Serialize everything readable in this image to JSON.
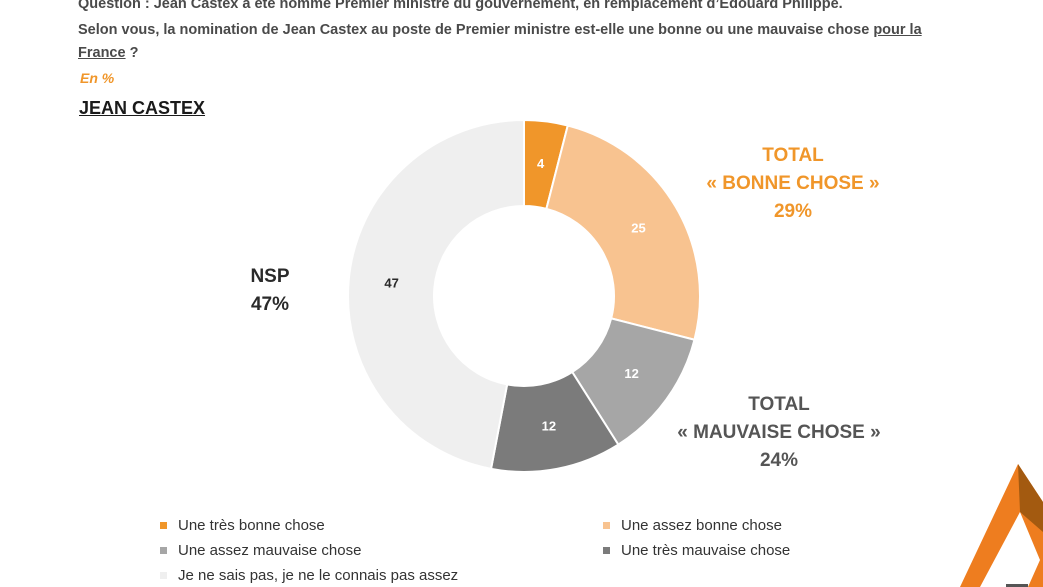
{
  "question": {
    "line1": "Question : Jean Castex a été nommé Premier ministre du gouvernement, en remplacement d’Edouard Philippe.",
    "line2_prefix": "Selon vous, la nomination de Jean Castex au poste de Premier ministre est-elle une bonne ou une mauvaise chose ",
    "line2_underlined": "pour la",
    "line3_underlined": "France",
    "line3_suffix": " ?"
  },
  "unit": "En %",
  "subject": "JEAN CASTEX",
  "callouts": {
    "good": {
      "title": "TOTAL",
      "label": "« BONNE CHOSE »",
      "value": "29%"
    },
    "bad": {
      "title": "TOTAL",
      "label": "« MAUVAISE CHOSE »",
      "value": "24%"
    },
    "nsp": {
      "title": "NSP",
      "value": "47%"
    }
  },
  "chart_data": {
    "type": "pie",
    "donut": true,
    "series": [
      {
        "name": "Une très bonne chose",
        "value": 4,
        "color": "#f0962a",
        "label_color": "#ffffff"
      },
      {
        "name": "Une assez bonne chose",
        "value": 25,
        "color": "#f8c390",
        "label_color": "#ffffff"
      },
      {
        "name": "Une assez mauvaise chose",
        "value": 12,
        "color": "#a6a6a6",
        "label_color": "#ffffff"
      },
      {
        "name": "Une très mauvaise chose",
        "value": 12,
        "color": "#7b7b7b",
        "label_color": "#ffffff"
      },
      {
        "name": "Je ne sais pas, je ne le connais pas assez",
        "value": 47,
        "color": "#efefef",
        "label_color": "#2a2a2a"
      }
    ]
  }
}
